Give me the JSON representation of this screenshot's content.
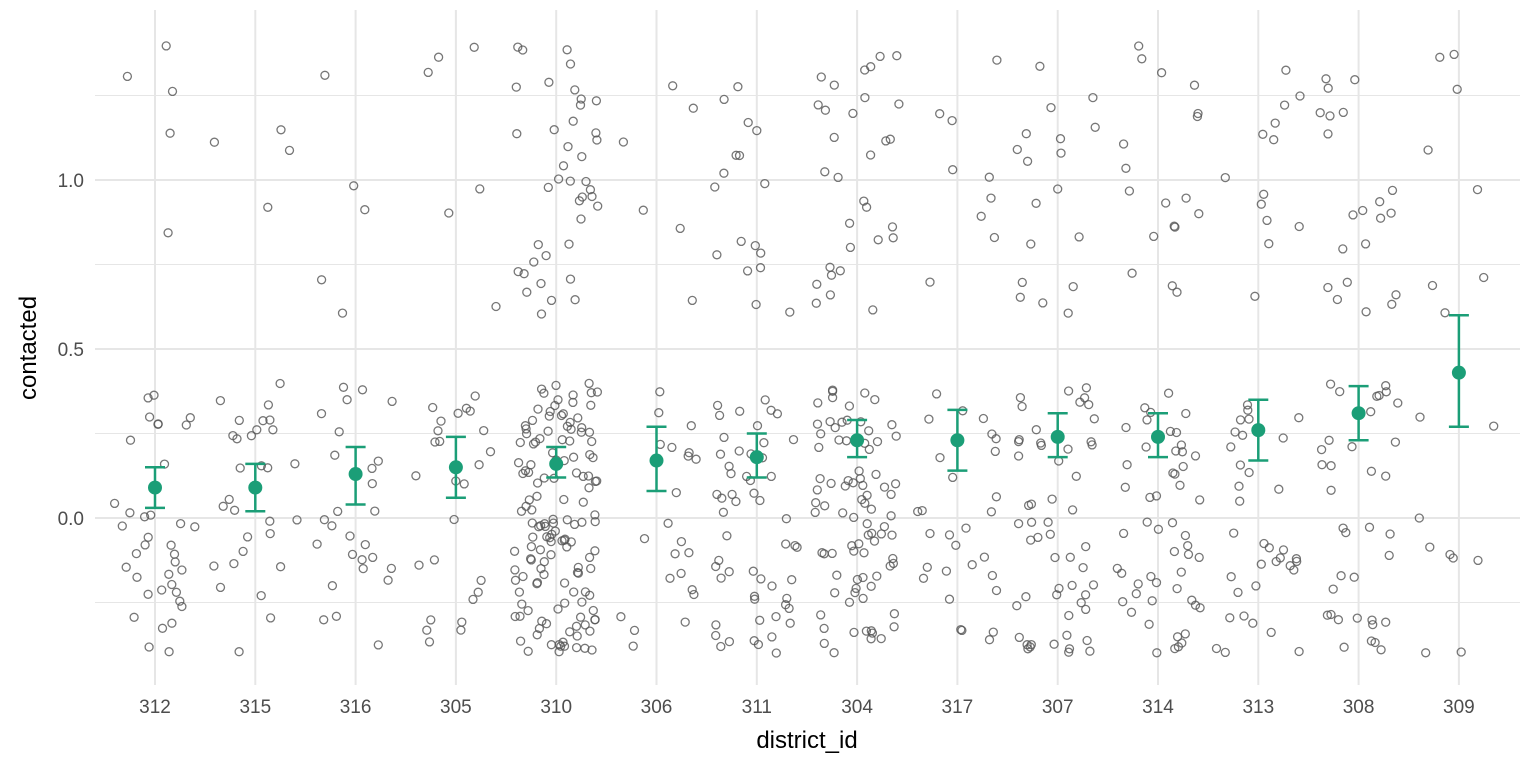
{
  "chart_data": {
    "type": "scatter",
    "xlabel": "district_id",
    "ylabel": "contacted",
    "categories": [
      "312",
      "315",
      "316",
      "305",
      "310",
      "306",
      "311",
      "304",
      "317",
      "307",
      "314",
      "313",
      "308",
      "309"
    ],
    "y_ticks": [
      0.0,
      0.5,
      1.0
    ],
    "y_tick_labels": [
      "0.0",
      "0.5",
      "1.0"
    ],
    "ylim": [
      -0.5,
      1.5
    ],
    "grid": true,
    "legend": "none",
    "colors": {
      "points": "#555555",
      "summary": "#1b9e77",
      "grid": "#e6e6e6"
    },
    "points_per_category": [
      42,
      34,
      32,
      32,
      181,
      28,
      72,
      116,
      38,
      72,
      70,
      48,
      57,
      17
    ],
    "proportion_contacted": [
      0.12,
      0.12,
      0.16,
      0.19,
      0.22,
      0.21,
      0.24,
      0.27,
      0.24,
      0.25,
      0.26,
      0.27,
      0.37,
      0.47
    ],
    "summary": [
      {
        "category": "312",
        "mean": 0.09,
        "lower": 0.03,
        "upper": 0.15
      },
      {
        "category": "315",
        "mean": 0.09,
        "lower": 0.02,
        "upper": 0.16
      },
      {
        "category": "316",
        "mean": 0.13,
        "lower": 0.04,
        "upper": 0.21
      },
      {
        "category": "305",
        "mean": 0.15,
        "lower": 0.06,
        "upper": 0.24
      },
      {
        "category": "310",
        "mean": 0.16,
        "lower": 0.12,
        "upper": 0.21
      },
      {
        "category": "306",
        "mean": 0.17,
        "lower": 0.08,
        "upper": 0.27
      },
      {
        "category": "311",
        "mean": 0.18,
        "lower": 0.12,
        "upper": 0.25
      },
      {
        "category": "304",
        "mean": 0.23,
        "lower": 0.18,
        "upper": 0.29
      },
      {
        "category": "317",
        "mean": 0.23,
        "lower": 0.14,
        "upper": 0.32
      },
      {
        "category": "307",
        "mean": 0.24,
        "lower": 0.18,
        "upper": 0.31
      },
      {
        "category": "314",
        "mean": 0.24,
        "lower": 0.18,
        "upper": 0.31
      },
      {
        "category": "313",
        "mean": 0.26,
        "lower": 0.17,
        "upper": 0.35
      },
      {
        "category": "308",
        "mean": 0.31,
        "lower": 0.23,
        "upper": 0.39
      },
      {
        "category": "309",
        "mean": 0.43,
        "lower": 0.27,
        "upper": 0.6
      }
    ]
  }
}
